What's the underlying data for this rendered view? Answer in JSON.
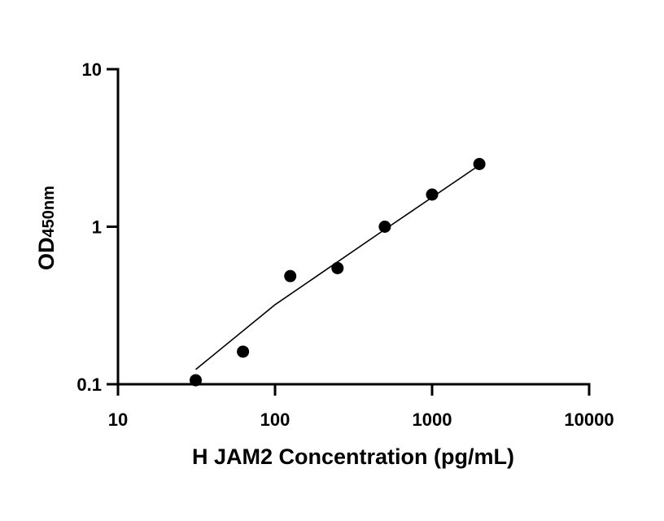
{
  "chart_data": {
    "type": "scatter",
    "x_scale": "log",
    "y_scale": "log",
    "xlim": [
      10,
      10000
    ],
    "ylim": [
      0.1,
      10
    ],
    "xlabel": "H JAM2 Concentration (pg/mL)",
    "ylabel": {
      "main": "OD",
      "subscript": "450nm"
    },
    "x_ticks": [
      {
        "value": 10,
        "label": "10"
      },
      {
        "value": 100,
        "label": "100"
      },
      {
        "value": 1000,
        "label": "1000"
      },
      {
        "value": 10000,
        "label": "10000"
      }
    ],
    "y_ticks": [
      {
        "value": 0.1,
        "label": "0.1"
      },
      {
        "value": 1,
        "label": "1"
      },
      {
        "value": 10,
        "label": "10"
      }
    ],
    "series": [
      {
        "points": [
          {
            "x": 31.25,
            "y": 0.106
          },
          {
            "x": 62.5,
            "y": 0.161
          },
          {
            "x": 125,
            "y": 0.486
          },
          {
            "x": 250,
            "y": 0.546
          },
          {
            "x": 500,
            "y": 1.0
          },
          {
            "x": 1000,
            "y": 1.6
          },
          {
            "x": 2000,
            "y": 2.5
          }
        ],
        "color": "#000000"
      }
    ],
    "fit_line": {
      "points": [
        {
          "x": 31.25,
          "y": 0.124
        },
        {
          "x": 100,
          "y": 0.32
        },
        {
          "x": 500,
          "y": 0.96
        },
        {
          "x": 2000,
          "y": 2.46
        }
      ],
      "color": "#000000"
    },
    "grid": false,
    "legend": "none"
  }
}
